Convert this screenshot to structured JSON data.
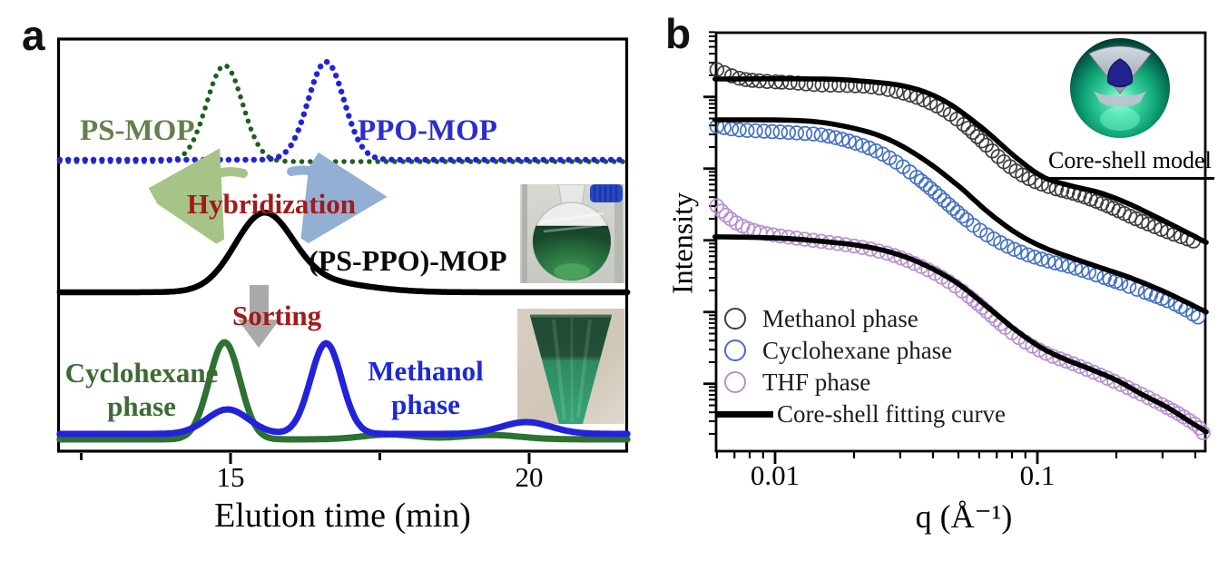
{
  "figure": {
    "panel_a": {
      "label": "a",
      "annotations": {
        "ps_mop": "PS-MOP",
        "ppo_mop": "PPO-MOP",
        "hybridization": "Hybridization",
        "ps_ppo_mop": "(PS-PPO)-MOP",
        "sorting": "Sorting",
        "cyclohexane_line1": "Cyclohexane",
        "cyclohexane_line2": "phase",
        "methanol_line1": "Methanol",
        "methanol_line2": "phase"
      },
      "x_axis": {
        "label": "Elution time (min)",
        "tick_labels": [
          "15",
          "20"
        ]
      }
    },
    "panel_b": {
      "label": "b",
      "y_axis_label": "Intensity",
      "x_axis_label": "q (Å⁻¹)",
      "x_tick_labels": [
        "0.01",
        "0.1"
      ],
      "inset_caption": "Core-shell model"
    }
  },
  "colors": {
    "black": "#000000",
    "green_dotted": "#1e5f1e",
    "green_solid": "#2d7231",
    "blue_curve": "#2222dd",
    "ps_mop_label": "#66804d",
    "ppo_mop_label": "#2a2ecb",
    "cyclohexane_label": "#3d6b33",
    "methanol_label": "#1d28d6",
    "dark_red": "#a31a1a",
    "sort_arrow": "#a9a9a9",
    "hyb_arrow_green": "#a6c488",
    "hyb_arrow_blue": "#93afd3",
    "marker_methanol": "#3d3d3d",
    "marker_cyclohexane": "#4370c4",
    "marker_thf": "#b78ed2",
    "fit_line": "#000000"
  },
  "chart_data": [
    {
      "type": "line",
      "title": "GPC chromatograms before and after MOP hybridization and sorting",
      "xlabel": "Elution time (min)",
      "xlim": [
        12.14,
        21.66
      ],
      "x_ticks_major": [
        15,
        20
      ],
      "x_ticks_minor": [
        12.5,
        17.5
      ],
      "ylabel": "",
      "grid": false,
      "series": [
        {
          "name": "PS-MOP",
          "line_style": "dotted",
          "color_key": "green_dotted",
          "peaks": [
            {
              "center_min": 14.9,
              "sigma_min": 0.3,
              "rel_height": 1.0
            }
          ]
        },
        {
          "name": "PPO-MOP",
          "line_style": "dotted",
          "color_key": "blue_curve",
          "peaks": [
            {
              "center_min": 16.6,
              "sigma_min": 0.3,
              "rel_height": 1.0
            }
          ]
        },
        {
          "name": "(PS-PPO)-MOP",
          "line_style": "solid",
          "color_key": "black",
          "peaks": [
            {
              "center_min": 15.55,
              "sigma_min": 0.48,
              "rel_height": 1.0
            },
            {
              "center_min": 16.35,
              "sigma_min": 0.85,
              "rel_height": 0.15
            }
          ]
        },
        {
          "name": "Cyclohexane phase",
          "line_style": "solid",
          "color_key": "green_solid",
          "peaks": [
            {
              "center_min": 14.9,
              "sigma_min": 0.26,
              "rel_height": 1.0
            },
            {
              "center_min": 17.65,
              "sigma_min": 0.45,
              "rel_height": 0.05
            },
            {
              "center_min": 19.35,
              "sigma_min": 0.5,
              "rel_height": 0.045
            }
          ]
        },
        {
          "name": "Methanol phase",
          "line_style": "solid",
          "color_key": "blue_curve",
          "peaks": [
            {
              "center_min": 16.6,
              "sigma_min": 0.26,
              "rel_height": 1.0
            },
            {
              "center_min": 14.95,
              "sigma_min": 0.35,
              "rel_height": 0.27
            },
            {
              "center_min": 19.95,
              "sigma_min": 0.42,
              "rel_height": 0.13
            }
          ]
        }
      ]
    },
    {
      "type": "scatter",
      "title": "SAXS profiles with core-shell model fits",
      "xlabel": "q (Å⁻¹)",
      "ylabel": "Intensity",
      "x_scale": "log",
      "y_scale": "log",
      "xlim": [
        0.0059,
        0.44
      ],
      "x_ticks_major": [
        0.01,
        0.1
      ],
      "x_ticks_minor": [
        0.006,
        0.007,
        0.008,
        0.009,
        0.02,
        0.03,
        0.04,
        0.05,
        0.06,
        0.07,
        0.08,
        0.09,
        0.2,
        0.3,
        0.4
      ],
      "y_ticks_major_log10": [
        0.94,
        1.94,
        2.94,
        3.94,
        4.94
      ],
      "ylim_log10": [
        0,
        5.86
      ],
      "grid": false,
      "legend": [
        {
          "label": "Methanol phase",
          "marker": "circle",
          "color_key": "marker_methanol"
        },
        {
          "label": "Cyclohexane phase",
          "marker": "circle",
          "color_key": "marker_cyclohexane"
        },
        {
          "label": "THF phase",
          "marker": "circle",
          "color_key": "marker_thf"
        },
        {
          "label": "Core-shell fitting curve",
          "marker": "line",
          "color_key": "fit_line"
        }
      ],
      "inset_caption": "Core-shell model",
      "series": [
        {
          "name": "Methanol phase",
          "color_key": "marker_methanol",
          "points": [
            [
              0.006,
              5.32
            ],
            [
              0.0073,
              5.2
            ],
            [
              0.0089,
              5.16
            ],
            [
              0.0114,
              5.14
            ],
            [
              0.0144,
              5.11
            ],
            [
              0.0184,
              5.1
            ],
            [
              0.0233,
              5.08
            ],
            [
              0.0296,
              5.01
            ],
            [
              0.0361,
              4.91
            ],
            [
              0.0439,
              4.76
            ],
            [
              0.0534,
              4.53
            ],
            [
              0.065,
              4.24
            ],
            [
              0.0772,
              3.99
            ],
            [
              0.0928,
              3.8
            ],
            [
              0.1127,
              3.68
            ],
            [
              0.1445,
              3.57
            ],
            [
              0.1852,
              3.42
            ],
            [
              0.2374,
              3.24
            ],
            [
              0.3131,
              3.06
            ],
            [
              0.4071,
              2.91
            ]
          ],
          "fit": [
            [
              0.0059,
              5.19
            ],
            [
              0.0144,
              5.19
            ],
            [
              0.0215,
              5.16
            ],
            [
              0.032,
              5.08
            ],
            [
              0.0439,
              4.89
            ],
            [
              0.0605,
              4.53
            ],
            [
              0.0832,
              4.09
            ],
            [
              0.1057,
              3.82
            ],
            [
              0.1343,
              3.7
            ],
            [
              0.1705,
              3.61
            ],
            [
              0.2166,
              3.47
            ],
            [
              0.275,
              3.29
            ],
            [
              0.3494,
              3.1
            ],
            [
              0.4401,
              2.91
            ]
          ]
        },
        {
          "name": "Cyclohexane phase",
          "color_key": "marker_cyclohexane",
          "points": [
            [
              0.006,
              4.53
            ],
            [
              0.0073,
              4.48
            ],
            [
              0.0093,
              4.46
            ],
            [
              0.0118,
              4.44
            ],
            [
              0.015,
              4.41
            ],
            [
              0.0184,
              4.34
            ],
            [
              0.0224,
              4.24
            ],
            [
              0.0273,
              4.09
            ],
            [
              0.0333,
              3.87
            ],
            [
              0.0407,
              3.61
            ],
            [
              0.0496,
              3.33
            ],
            [
              0.0605,
              3.08
            ],
            [
              0.0739,
              2.89
            ],
            [
              0.0902,
              2.75
            ],
            [
              0.11,
              2.65
            ],
            [
              0.1343,
              2.57
            ],
            [
              0.1639,
              2.47
            ],
            [
              0.2081,
              2.34
            ],
            [
              0.2641,
              2.2
            ],
            [
              0.3357,
              2.05
            ],
            [
              0.4097,
              1.87
            ]
          ],
          "fit": [
            [
              0.0059,
              4.62
            ],
            [
              0.0123,
              4.61
            ],
            [
              0.0184,
              4.53
            ],
            [
              0.0262,
              4.37
            ],
            [
              0.0361,
              4.09
            ],
            [
              0.0496,
              3.71
            ],
            [
              0.065,
              3.33
            ],
            [
              0.0832,
              3.04
            ],
            [
              0.1057,
              2.84
            ],
            [
              0.1343,
              2.7
            ],
            [
              0.1705,
              2.57
            ],
            [
              0.2254,
              2.42
            ],
            [
              0.2978,
              2.24
            ],
            [
              0.3637,
              2.09
            ],
            [
              0.4401,
              1.94
            ]
          ]
        },
        {
          "name": "THF phase",
          "color_key": "marker_thf",
          "points": [
            [
              0.006,
              3.42
            ],
            [
              0.0065,
              3.29
            ],
            [
              0.0073,
              3.16
            ],
            [
              0.0086,
              3.06
            ],
            [
              0.0105,
              3.0
            ],
            [
              0.0133,
              2.95
            ],
            [
              0.0169,
              2.9
            ],
            [
              0.0215,
              2.84
            ],
            [
              0.0273,
              2.75
            ],
            [
              0.0333,
              2.63
            ],
            [
              0.0407,
              2.48
            ],
            [
              0.0496,
              2.28
            ],
            [
              0.0605,
              2.03
            ],
            [
              0.0739,
              1.75
            ],
            [
              0.0902,
              1.52
            ],
            [
              0.11,
              1.35
            ],
            [
              0.1343,
              1.23
            ],
            [
              0.1639,
              1.1
            ],
            [
              0.2,
              0.96
            ],
            [
              0.244,
              0.81
            ],
            [
              0.2978,
              0.65
            ],
            [
              0.3494,
              0.51
            ],
            [
              0.4071,
              0.35
            ],
            [
              0.4297,
              0.25
            ]
          ],
          "fit": [
            [
              0.0059,
              2.99
            ],
            [
              0.0105,
              2.97
            ],
            [
              0.0156,
              2.92
            ],
            [
              0.0215,
              2.86
            ],
            [
              0.0284,
              2.76
            ],
            [
              0.0375,
              2.59
            ],
            [
              0.0496,
              2.34
            ],
            [
              0.065,
              2.0
            ],
            [
              0.0832,
              1.68
            ],
            [
              0.1016,
              1.46
            ],
            [
              0.124,
              1.3
            ],
            [
              0.1575,
              1.15
            ],
            [
              0.2,
              0.99
            ],
            [
              0.254,
              0.78
            ],
            [
              0.3131,
              0.61
            ],
            [
              0.3784,
              0.42
            ],
            [
              0.4401,
              0.27
            ]
          ]
        }
      ]
    }
  ]
}
